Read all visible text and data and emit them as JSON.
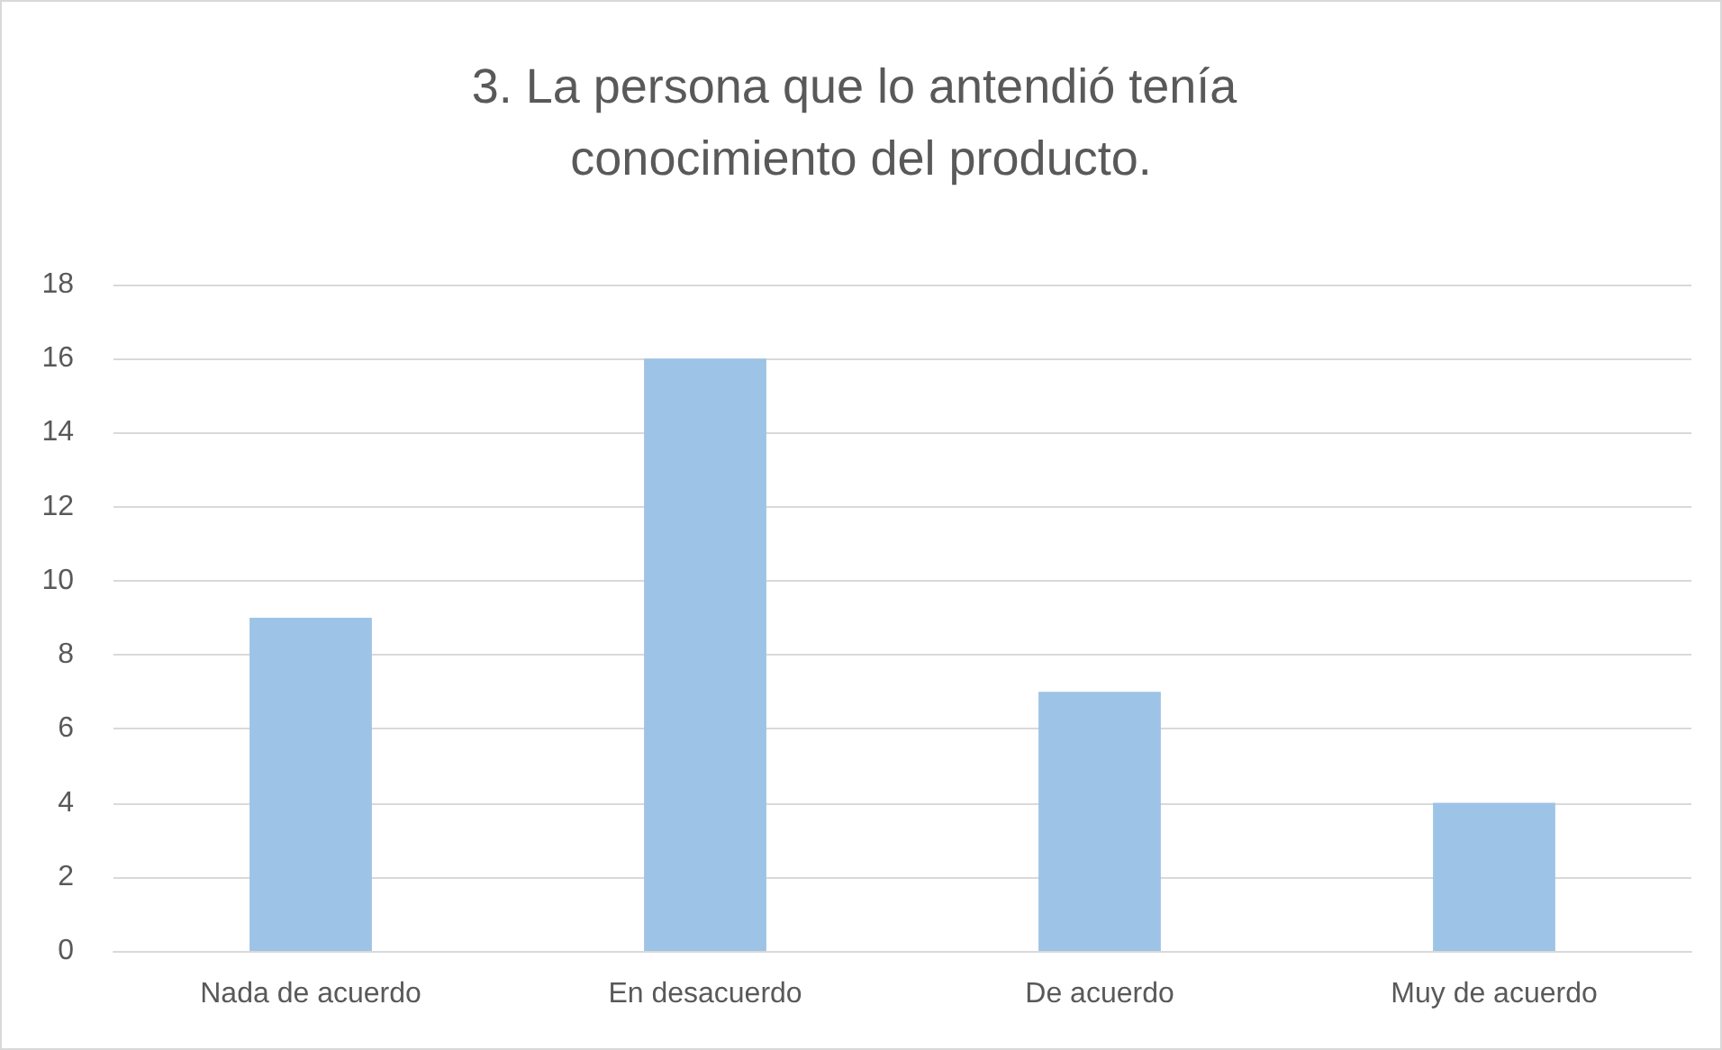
{
  "chart_data": {
    "type": "bar",
    "title": "3. La persona que lo antendió tenía conocimiento del producto.",
    "categories": [
      "Nada de acuerdo",
      "En desacuerdo",
      "De acuerdo",
      "Muy de acuerdo"
    ],
    "values": [
      9,
      16,
      7,
      4
    ],
    "color": "#9dc3e6",
    "ylim": [
      0,
      18
    ],
    "yticks": [
      0,
      2,
      4,
      6,
      8,
      10,
      12,
      14,
      16,
      18
    ],
    "grid": "y"
  }
}
